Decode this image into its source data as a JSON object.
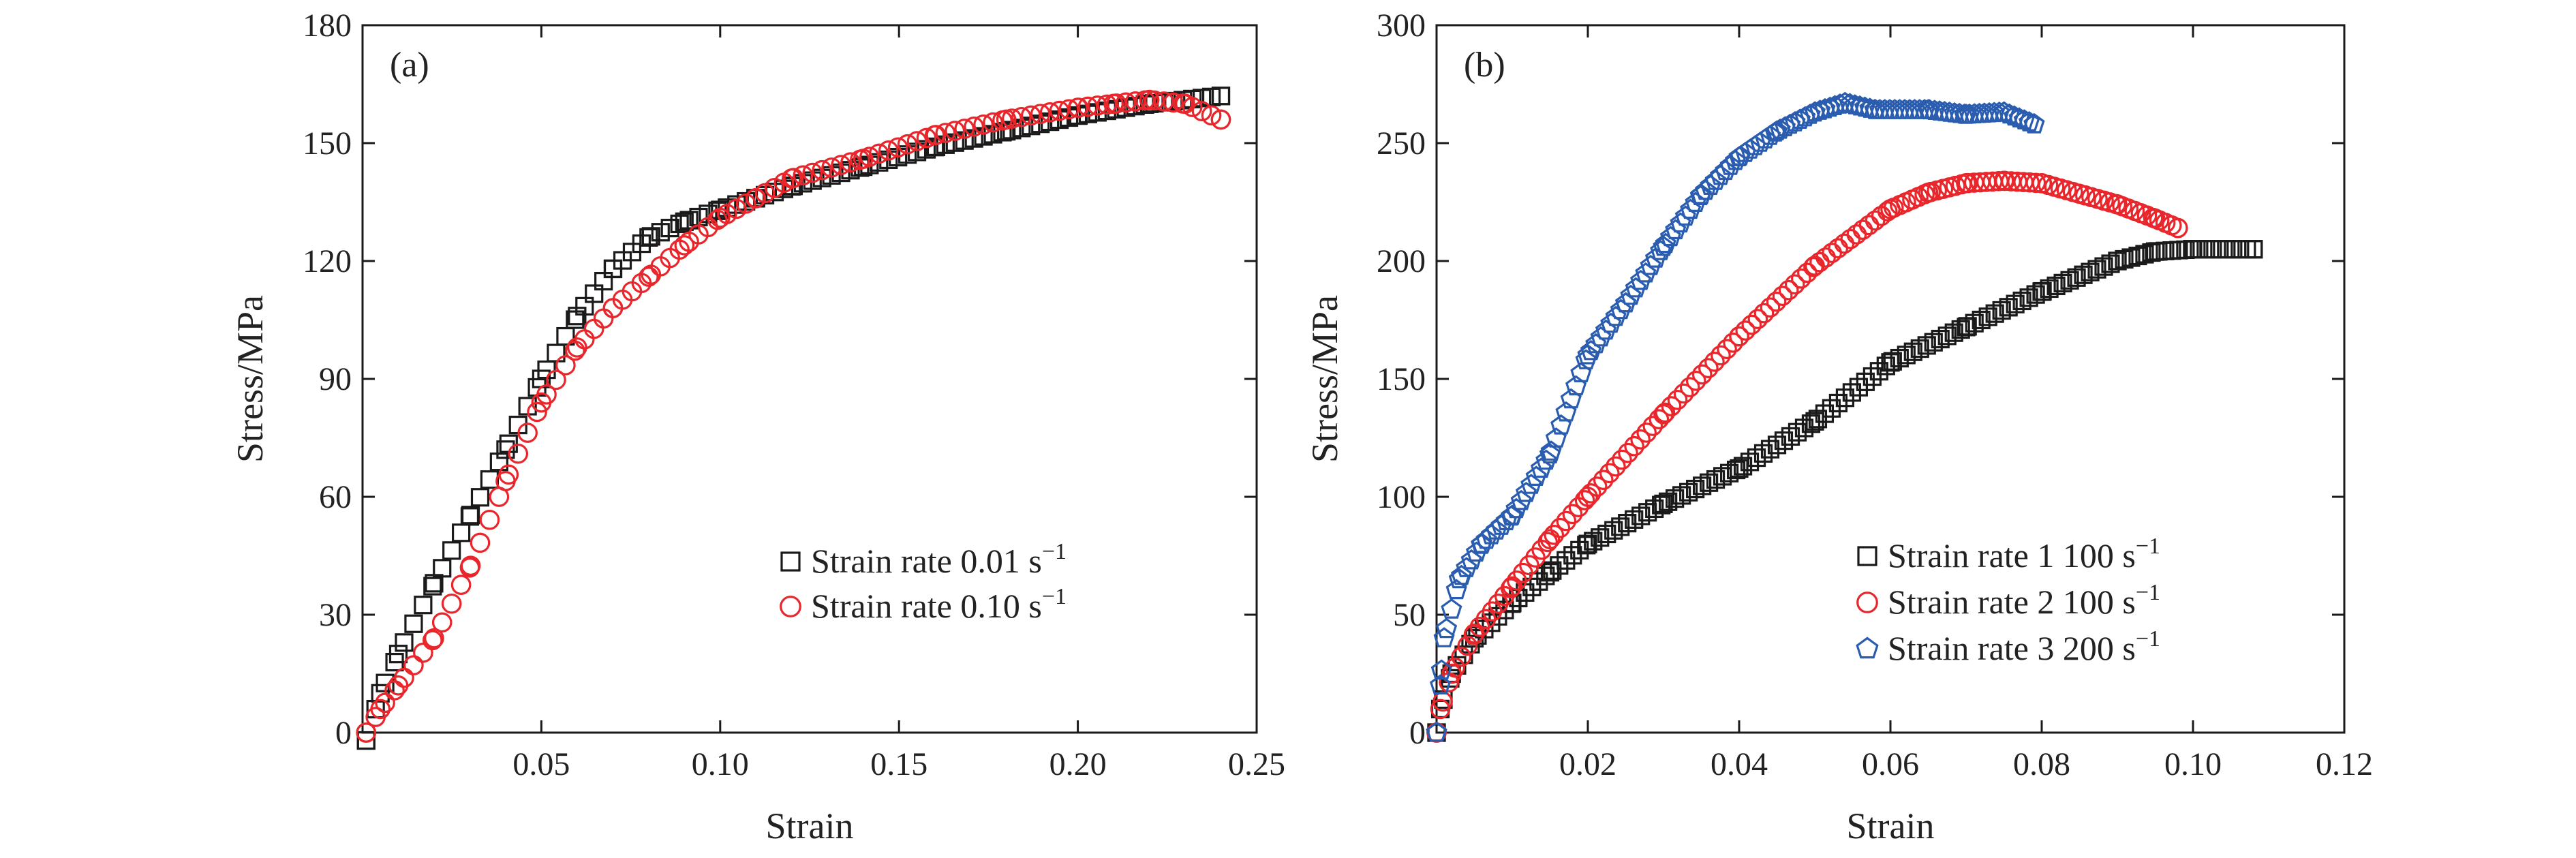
{
  "chart_data": [
    {
      "type": "scatter",
      "panel_tag": "(a)",
      "xlabel": "Strain",
      "ylabel": "Stress/MPa",
      "xlim": [
        0,
        0.25
      ],
      "ylim": [
        0,
        180
      ],
      "xticks": [
        0.05,
        0.1,
        0.15,
        0.2,
        0.25
      ],
      "xtick_labels": [
        "0.05",
        "0.10",
        "0.15",
        "0.20",
        "0.25"
      ],
      "yticks": [
        0,
        30,
        60,
        90,
        120,
        150,
        180
      ],
      "ytick_labels": [
        "0",
        "30",
        "60",
        "90",
        "120",
        "150",
        "180"
      ],
      "legend_position": "center-right",
      "series": [
        {
          "name": "Strain rate 0.01 s",
          "name_sup": "−1",
          "marker": "square",
          "color": "#1a1a1a",
          "x": [
            0.001,
            0.005,
            0.01,
            0.02,
            0.03,
            0.04,
            0.05,
            0.06,
            0.07,
            0.08,
            0.09,
            0.1,
            0.11,
            0.12,
            0.14,
            0.16,
            0.18,
            0.2,
            0.22,
            0.24
          ],
          "y": [
            -2,
            10,
            20,
            38,
            55,
            72,
            90,
            106,
            118,
            126,
            130,
            133,
            136,
            139,
            144,
            149,
            153,
            157,
            160,
            162
          ]
        },
        {
          "name": "Strain rate 0.10 s",
          "name_sup": "−1",
          "marker": "circle",
          "color": "#e8262b",
          "x": [
            0.001,
            0.005,
            0.01,
            0.02,
            0.03,
            0.04,
            0.05,
            0.06,
            0.07,
            0.08,
            0.09,
            0.1,
            0.11,
            0.12,
            0.14,
            0.16,
            0.18,
            0.2,
            0.21,
            0.22,
            0.23,
            0.24
          ],
          "y": [
            0,
            6,
            12,
            24,
            42,
            64,
            84,
            98,
            108,
            116,
            124,
            131,
            136,
            141,
            146,
            152,
            156,
            159,
            160,
            161,
            160,
            156
          ]
        }
      ]
    },
    {
      "type": "scatter",
      "panel_tag": "(b)",
      "xlabel": "Strain",
      "ylabel": "Stress/MPa",
      "xlim": [
        0,
        0.12
      ],
      "ylim": [
        0,
        300
      ],
      "xticks": [
        0.02,
        0.04,
        0.06,
        0.08,
        0.1,
        0.12
      ],
      "xtick_labels": [
        "0.02",
        "0.04",
        "0.06",
        "0.08",
        "0.10",
        "0.12"
      ],
      "yticks": [
        0,
        50,
        100,
        150,
        200,
        250,
        300
      ],
      "ytick_labels": [
        "0",
        "50",
        "100",
        "150",
        "200",
        "250",
        "300"
      ],
      "legend_position": "bottom-right",
      "series": [
        {
          "name": "Strain rate 1 100 s",
          "name_sup": "−1",
          "marker": "square",
          "color": "#1a1a1a",
          "x": [
            0,
            0.0005,
            0.002,
            0.005,
            0.01,
            0.015,
            0.02,
            0.03,
            0.04,
            0.05,
            0.06,
            0.07,
            0.08,
            0.09,
            0.095,
            0.1,
            0.108
          ],
          "y": [
            0,
            10,
            25,
            40,
            55,
            68,
            80,
            97,
            112,
            132,
            157,
            172,
            187,
            200,
            204,
            205,
            205
          ]
        },
        {
          "name": "Strain rate 2 100 s",
          "name_sup": "−1",
          "marker": "circle",
          "color": "#e8262b",
          "x": [
            0,
            0.0005,
            0.002,
            0.005,
            0.01,
            0.015,
            0.02,
            0.03,
            0.04,
            0.05,
            0.06,
            0.065,
            0.07,
            0.075,
            0.08,
            0.09,
            0.095,
            0.098
          ],
          "y": [
            0,
            10,
            25,
            42,
            62,
            82,
            100,
            135,
            168,
            198,
            222,
            229,
            233,
            234,
            233,
            224,
            218,
            214
          ]
        },
        {
          "name": "Strain rate 3 200 s",
          "name_sup": "−1",
          "marker": "pentagon",
          "color": "#2a5db0",
          "x": [
            0,
            0.0005,
            0.001,
            0.003,
            0.006,
            0.01,
            0.015,
            0.02,
            0.025,
            0.03,
            0.035,
            0.04,
            0.045,
            0.05,
            0.054,
            0.058,
            0.065,
            0.07,
            0.075,
            0.079
          ],
          "y": [
            0,
            20,
            40,
            65,
            80,
            92,
            118,
            160,
            182,
            206,
            228,
            244,
            255,
            263,
            267,
            264,
            264,
            262,
            263,
            258
          ]
        }
      ]
    }
  ]
}
